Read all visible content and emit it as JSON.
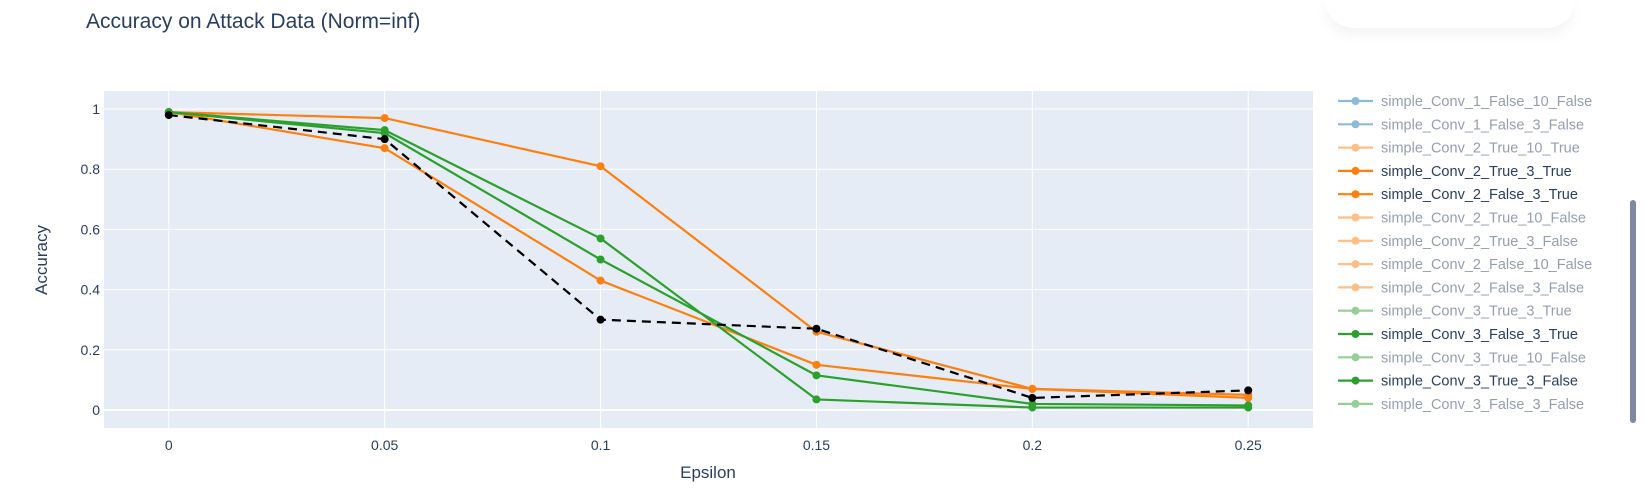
{
  "chart_data": {
    "type": "line",
    "title": "Accuracy on Attack Data (Norm=inf)",
    "xlabel": "Epsilon",
    "ylabel": "Accuracy",
    "x": [
      0,
      0.05,
      0.1,
      0.15,
      0.2,
      0.25
    ],
    "x_tick_labels": [
      "0",
      "0.05",
      "0.1",
      "0.15",
      "0.2",
      "0.25"
    ],
    "y_ticks": [
      0,
      0.2,
      0.4,
      0.6,
      0.8,
      1
    ],
    "y_tick_labels": [
      "0",
      "0.2",
      "0.4",
      "0.6",
      "0.8",
      "1"
    ],
    "xlim": [
      -0.015,
      0.265
    ],
    "ylim": [
      -0.06,
      1.06
    ],
    "grid": true,
    "legend_position": "right",
    "series": [
      {
        "name": "simple_Conv_1_False_10_False",
        "color": "#1f77b4",
        "visible": false
      },
      {
        "name": "simple_Conv_1_False_3_False",
        "color": "#1f77b4",
        "visible": false
      },
      {
        "name": "simple_Conv_2_True_10_True",
        "color": "#ff7f0e",
        "visible": false
      },
      {
        "name": "simple_Conv_2_True_3_True",
        "color": "#ff7f0e",
        "visible": true,
        "values": [
          0.99,
          0.97,
          0.81,
          0.26,
          0.07,
          0.04
        ]
      },
      {
        "name": "simple_Conv_2_False_3_True",
        "color": "#ff7f0e",
        "visible": true,
        "values": [
          0.99,
          0.87,
          0.43,
          0.15,
          0.07,
          0.05
        ]
      },
      {
        "name": "simple_Conv_2_True_10_False",
        "color": "#ff7f0e",
        "visible": false
      },
      {
        "name": "simple_Conv_2_True_3_False",
        "color": "#ff7f0e",
        "visible": false
      },
      {
        "name": "simple_Conv_2_False_10_False",
        "color": "#ff7f0e",
        "visible": false
      },
      {
        "name": "simple_Conv_2_False_3_False",
        "color": "#ff7f0e",
        "visible": false
      },
      {
        "name": "simple_Conv_3_True_3_True",
        "color": "#2ca02c",
        "visible": false
      },
      {
        "name": "simple_Conv_3_False_3_True",
        "color": "#2ca02c",
        "visible": true,
        "values": [
          0.99,
          0.92,
          0.5,
          0.115,
          0.02,
          0.015
        ]
      },
      {
        "name": "simple_Conv_3_True_10_False",
        "color": "#2ca02c",
        "visible": false
      },
      {
        "name": "simple_Conv_3_True_3_False",
        "color": "#2ca02c",
        "visible": true,
        "values": [
          0.99,
          0.93,
          0.57,
          0.035,
          0.008,
          0.008
        ]
      },
      {
        "name": "simple_Conv_3_False_3_False",
        "color": "#2ca02c",
        "visible": false
      }
    ],
    "reference_series": {
      "style": "dashed",
      "color": "#000000",
      "values": [
        0.98,
        0.9,
        0.3,
        0.27,
        0.04,
        0.065
      ]
    }
  }
}
